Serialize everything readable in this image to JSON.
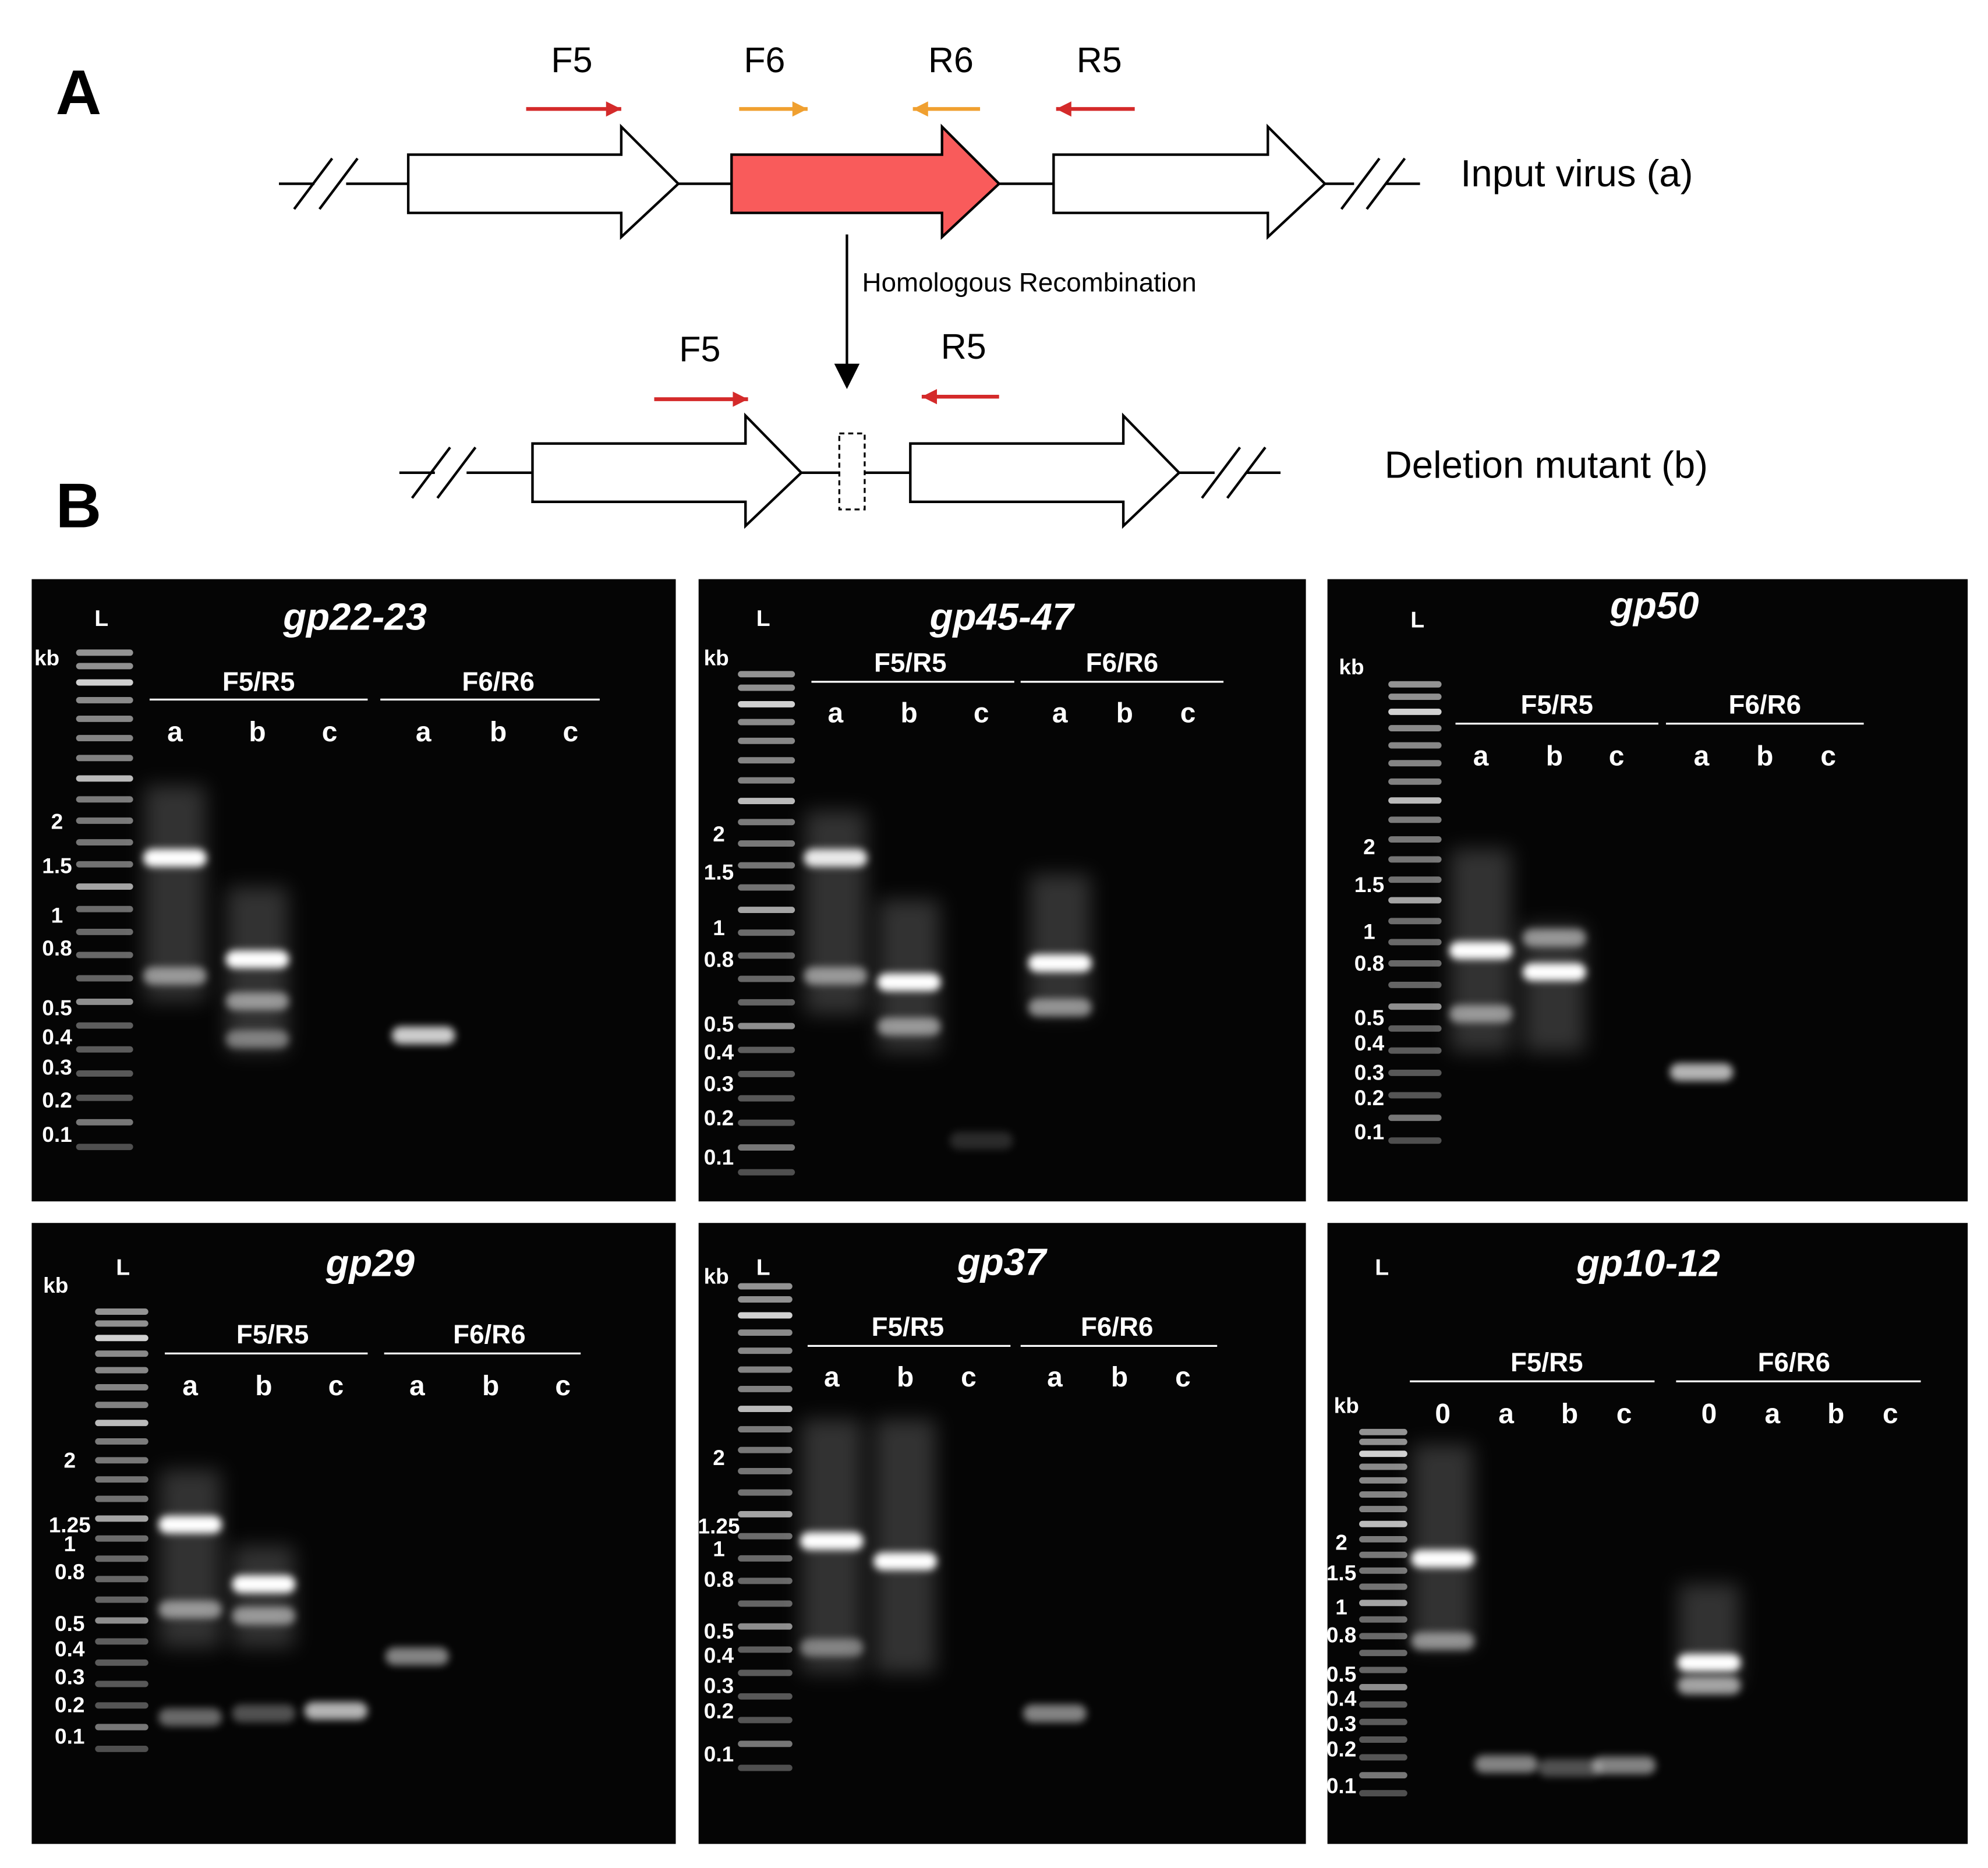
{
  "panel_a": {
    "label": "A",
    "primers_top": [
      "F5",
      "F6",
      "R6",
      "R5"
    ],
    "input_label": "Input virus (a)",
    "arrow_label": "Homologous Recombination",
    "primers_bottom": [
      "F5",
      "R5"
    ],
    "mutant_label": "Deletion mutant (b)"
  },
  "panel_b": {
    "label": "B",
    "gels": [
      {
        "title": "gp22-23",
        "ladder_label": "L",
        "unit": "kb",
        "sizes": [
          2,
          1.5,
          1,
          0.8,
          0.5,
          0.4,
          0.3,
          0.2,
          0.1
        ],
        "groups": [
          {
            "name": "F5/R5",
            "lanes": [
              "a",
              "b",
              "c"
            ]
          },
          {
            "name": "F6/R6",
            "lanes": [
              "a",
              "b",
              "c"
            ]
          }
        ]
      },
      {
        "title": "gp45-47",
        "ladder_label": "L",
        "unit": "kb",
        "sizes": [
          2,
          1.5,
          1,
          0.8,
          0.5,
          0.4,
          0.3,
          0.2,
          0.1
        ],
        "groups": [
          {
            "name": "F5/R5",
            "lanes": [
              "a",
              "b",
              "c"
            ]
          },
          {
            "name": "F6/R6",
            "lanes": [
              "a",
              "b",
              "c"
            ]
          }
        ]
      },
      {
        "title": "gp50",
        "ladder_label": "L",
        "unit": "kb",
        "sizes": [
          2,
          1.5,
          1,
          0.8,
          0.5,
          0.4,
          0.3,
          0.2,
          0.1
        ],
        "groups": [
          {
            "name": "F5/R5",
            "lanes": [
              "a",
              "b",
              "c"
            ]
          },
          {
            "name": "F6/R6",
            "lanes": [
              "a",
              "b",
              "c"
            ]
          }
        ]
      },
      {
        "title": "gp29",
        "ladder_label": "L",
        "unit": "kb",
        "sizes": [
          2,
          1.25,
          1,
          0.8,
          0.5,
          0.4,
          0.3,
          0.2,
          0.1
        ],
        "groups": [
          {
            "name": "F5/R5",
            "lanes": [
              "a",
              "b",
              "c"
            ]
          },
          {
            "name": "F6/R6",
            "lanes": [
              "a",
              "b",
              "c"
            ]
          }
        ]
      },
      {
        "title": "gp37",
        "ladder_label": "L",
        "unit": "kb",
        "sizes": [
          2,
          1.25,
          1,
          0.8,
          0.5,
          0.4,
          0.3,
          0.2,
          0.1
        ],
        "groups": [
          {
            "name": "F5/R5",
            "lanes": [
              "a",
              "b",
              "c"
            ]
          },
          {
            "name": "F6/R6",
            "lanes": [
              "a",
              "b",
              "c"
            ]
          }
        ]
      },
      {
        "title": "gp10-12",
        "ladder_label": "L",
        "unit": "kb",
        "sizes": [
          2,
          1.5,
          1,
          0.8,
          0.5,
          0.4,
          0.3,
          0.2,
          0.1
        ],
        "groups": [
          {
            "name": "F5/R5",
            "lanes": [
              "0",
              "a",
              "b",
              "c"
            ]
          },
          {
            "name": "F6/R6",
            "lanes": [
              "0",
              "a",
              "b",
              "c"
            ]
          }
        ]
      }
    ]
  }
}
